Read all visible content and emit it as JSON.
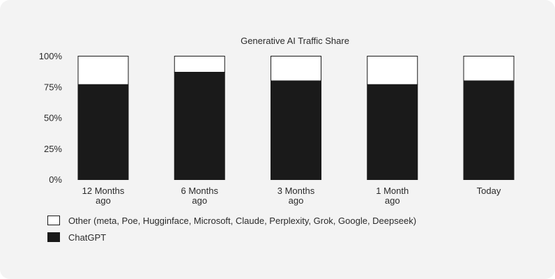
{
  "chart_data": {
    "type": "bar",
    "stacked": true,
    "title": "Generative AI Traffic Share",
    "categories": [
      "12 Months ago",
      "6 Months ago",
      "3 Months ago",
      "1 Month ago",
      "Today"
    ],
    "category_labels": [
      [
        "12 Months",
        "ago"
      ],
      [
        "6 Months",
        "ago"
      ],
      [
        "3 Months",
        "ago"
      ],
      [
        "1 Month",
        "ago"
      ],
      [
        "Today"
      ]
    ],
    "series": [
      {
        "name": "ChatGPT",
        "color": "#1a1a1a",
        "values": [
          77,
          87,
          80,
          77,
          80
        ]
      },
      {
        "name": "Other (meta, Poe, Hugginface, Microsoft, Claude, Perplexity, Grok, Google, Deepseek)",
        "color": "#ffffff",
        "values": [
          23,
          13,
          20,
          23,
          20
        ]
      }
    ],
    "yticks": [
      "0%",
      "25%",
      "50%",
      "75%",
      "100%"
    ],
    "ylim": [
      0,
      100
    ],
    "xlabel": "",
    "ylabel": "",
    "grid": false,
    "legend_position": "bottom-left"
  },
  "legend": {
    "items": [
      {
        "label": "Other (meta, Poe, Hugginface, Microsoft, Claude, Perplexity, Grok, Google, Deepseek)",
        "color": "#ffffff"
      },
      {
        "label": "ChatGPT",
        "color": "#1a1a1a"
      }
    ]
  }
}
